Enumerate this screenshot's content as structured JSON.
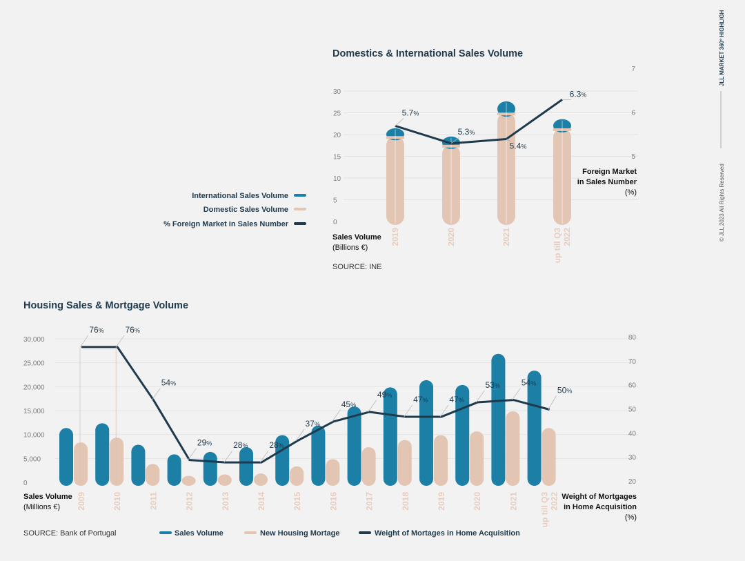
{
  "side": {
    "brand": "JLL MARKET 360º HIGHLIGH",
    "copyright": "© JLL 2023 All Rights Reserved"
  },
  "colors": {
    "international": "#1b7fa6",
    "domestic": "#e3c5b4",
    "line": "#1f3a4d",
    "sales": "#1b7fa6",
    "mortgage": "#e3c5b4"
  },
  "chart_data": [
    {
      "type": "bar",
      "title": "Domestics & International Sales Volume",
      "categories": [
        "2019",
        "2020",
        "2021",
        "up till Q3 2022"
      ],
      "category_labels": [
        [
          "2019"
        ],
        [
          "2020"
        ],
        [
          "2021"
        ],
        [
          "up till Q3",
          "2022"
        ]
      ],
      "series": [
        {
          "name": "Domestic Sales Volume",
          "values": [
            19.8,
            17.8,
            25.2,
            21.6
          ]
        },
        {
          "name": "International Sales Volume",
          "values": [
            1.8,
            1.9,
            2.6,
            2.1
          ]
        },
        {
          "name": "% Foreign Market in Sales Number",
          "axis": "right",
          "values": [
            5.7,
            5.3,
            5.4,
            6.3
          ]
        }
      ],
      "line_labels": [
        "5.7",
        "5.3",
        "5.4",
        "6.3"
      ],
      "left_axis": {
        "label": "Sales Volume",
        "unit": "(Billions €)",
        "ticks": [
          "0",
          "5",
          "10",
          "15",
          "20",
          "25",
          "30"
        ],
        "ylim": [
          0,
          30
        ]
      },
      "right_axis": {
        "label_line1": "Foreign Market",
        "label_line2": "in Sales Number",
        "unit": "(%)",
        "ticks": [
          "5",
          "6",
          "7"
        ],
        "ylim": [
          3.5,
          7
        ]
      },
      "legend": [
        "International Sales Volume",
        "Domestic Sales Volume",
        "% Foreign Market in Sales Number"
      ],
      "source": "SOURCE: INE"
    },
    {
      "type": "bar",
      "title": "Housing Sales & Mortgage Volume",
      "categories": [
        "2009",
        "2010",
        "2011",
        "2012",
        "2013",
        "2014",
        "2015",
        "2016",
        "2017",
        "2018",
        "2019",
        "2020",
        "2021",
        "up till Q3 2022"
      ],
      "category_labels": [
        [
          "2009"
        ],
        [
          "2010"
        ],
        [
          "2011"
        ],
        [
          "2012"
        ],
        [
          "2013"
        ],
        [
          "2014"
        ],
        [
          "2015"
        ],
        [
          "2016"
        ],
        [
          "2017"
        ],
        [
          "2018"
        ],
        [
          "2019"
        ],
        [
          "2020"
        ],
        [
          "2021"
        ],
        [
          "up till Q3",
          "2022"
        ]
      ],
      "series": [
        {
          "name": "Sales Volume",
          "values": [
            11500,
            12500,
            8000,
            6000,
            6500,
            7500,
            10000,
            12000,
            16000,
            20000,
            21500,
            20500,
            27000,
            23500
          ]
        },
        {
          "name": "New Housing Mortage",
          "values": [
            8500,
            9500,
            4000,
            1500,
            1800,
            2000,
            3500,
            5000,
            7500,
            9000,
            10000,
            10800,
            15000,
            11500
          ]
        },
        {
          "name": "Weight of Mortages in Home Acquisition",
          "axis": "right",
          "values": [
            76,
            76,
            54,
            29,
            28,
            28,
            37,
            45,
            49,
            47,
            47,
            53,
            54,
            50
          ]
        }
      ],
      "line_labels": [
        "76",
        "76",
        "54",
        "29",
        "28",
        "28",
        "37",
        "45",
        "49",
        "47",
        "47",
        "53",
        "54",
        "50"
      ],
      "left_axis": {
        "label": "Sales Volume",
        "unit": "(Millions €)",
        "ticks": [
          "0",
          "5,000",
          "10,000",
          "15,000",
          "20,000",
          "25,000",
          "30,000"
        ],
        "ylim": [
          0,
          30000
        ]
      },
      "right_axis": {
        "label_line1": "Weight of Mortgages",
        "label_line2": "in Home Acquisition",
        "unit": "(%)",
        "ticks": [
          "20",
          "30",
          "40",
          "50",
          "60",
          "70",
          "80"
        ],
        "ylim": [
          20,
          80
        ]
      },
      "legend": [
        "Sales Volume",
        "New Housing Mortage",
        "Weight of Mortages in Home Acquisition"
      ],
      "source": "SOURCE: Bank of Portugal"
    }
  ]
}
